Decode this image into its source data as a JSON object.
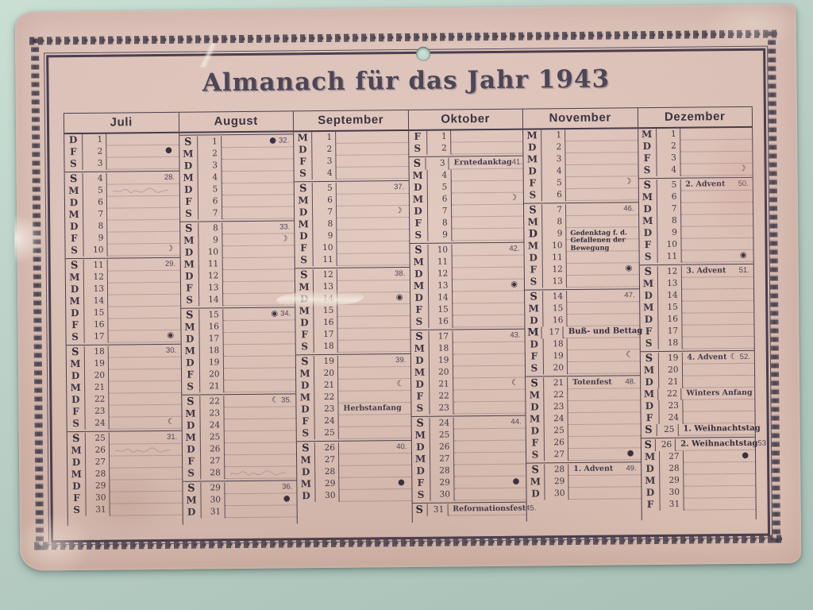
{
  "title": "Almanach für das Jahr 1943",
  "colors": {
    "paper": "#d6bab0",
    "ink": "#473d4b",
    "background": "#b7cec6"
  },
  "moon_symbols": {
    "new": "●",
    "first_quarter": "☽",
    "full": "◉",
    "last_quarter": "☾"
  },
  "months": [
    {
      "name": "Juli",
      "days": [
        {
          "n": 1,
          "w": "D"
        },
        {
          "n": 2,
          "w": "F",
          "m": "●"
        },
        {
          "n": 3,
          "w": "S"
        },
        {
          "n": 4,
          "w": "S",
          "s": 1,
          "wk": "28."
        },
        {
          "n": 5,
          "w": "M",
          "p": 1
        },
        {
          "n": 6,
          "w": "D"
        },
        {
          "n": 7,
          "w": "M"
        },
        {
          "n": 8,
          "w": "D"
        },
        {
          "n": 9,
          "w": "F"
        },
        {
          "n": 10,
          "w": "S",
          "m": "☽"
        },
        {
          "n": 11,
          "w": "S",
          "s": 1,
          "wk": "29."
        },
        {
          "n": 12,
          "w": "M"
        },
        {
          "n": 13,
          "w": "D"
        },
        {
          "n": 14,
          "w": "M"
        },
        {
          "n": 15,
          "w": "D"
        },
        {
          "n": 16,
          "w": "F"
        },
        {
          "n": 17,
          "w": "S",
          "m": "◉"
        },
        {
          "n": 18,
          "w": "S",
          "s": 1,
          "wk": "30."
        },
        {
          "n": 19,
          "w": "M"
        },
        {
          "n": 20,
          "w": "D"
        },
        {
          "n": 21,
          "w": "M"
        },
        {
          "n": 22,
          "w": "D"
        },
        {
          "n": 23,
          "w": "F"
        },
        {
          "n": 24,
          "w": "S",
          "m": "☾"
        },
        {
          "n": 25,
          "w": "S",
          "s": 1,
          "wk": "31."
        },
        {
          "n": 26,
          "w": "M",
          "p": 1
        },
        {
          "n": 27,
          "w": "D"
        },
        {
          "n": 28,
          "w": "M"
        },
        {
          "n": 29,
          "w": "D"
        },
        {
          "n": 30,
          "w": "F"
        },
        {
          "n": 31,
          "w": "S"
        }
      ]
    },
    {
      "name": "August",
      "days": [
        {
          "n": 1,
          "w": "S",
          "s": 1,
          "m": "●",
          "wk": "32."
        },
        {
          "n": 2,
          "w": "M"
        },
        {
          "n": 3,
          "w": "D"
        },
        {
          "n": 4,
          "w": "M"
        },
        {
          "n": 5,
          "w": "D"
        },
        {
          "n": 6,
          "w": "F"
        },
        {
          "n": 7,
          "w": "S"
        },
        {
          "n": 8,
          "w": "S",
          "s": 1,
          "wk": "33."
        },
        {
          "n": 9,
          "w": "M",
          "m": "☽"
        },
        {
          "n": 10,
          "w": "D"
        },
        {
          "n": 11,
          "w": "M"
        },
        {
          "n": 12,
          "w": "D"
        },
        {
          "n": 13,
          "w": "F"
        },
        {
          "n": 14,
          "w": "S"
        },
        {
          "n": 15,
          "w": "S",
          "s": 1,
          "m": "◉",
          "wk": "34."
        },
        {
          "n": 16,
          "w": "M"
        },
        {
          "n": 17,
          "w": "D"
        },
        {
          "n": 18,
          "w": "M"
        },
        {
          "n": 19,
          "w": "D"
        },
        {
          "n": 20,
          "w": "F"
        },
        {
          "n": 21,
          "w": "S"
        },
        {
          "n": 22,
          "w": "S",
          "s": 1,
          "m": "☾",
          "wk": "35."
        },
        {
          "n": 23,
          "w": "M"
        },
        {
          "n": 24,
          "w": "D"
        },
        {
          "n": 25,
          "w": "M"
        },
        {
          "n": 26,
          "w": "D"
        },
        {
          "n": 27,
          "w": "F"
        },
        {
          "n": 28,
          "w": "S",
          "p": 1
        },
        {
          "n": 29,
          "w": "S",
          "s": 1,
          "wk": "36."
        },
        {
          "n": 30,
          "w": "M",
          "m": "●"
        },
        {
          "n": 31,
          "w": "D"
        }
      ]
    },
    {
      "name": "September",
      "days": [
        {
          "n": 1,
          "w": "M"
        },
        {
          "n": 2,
          "w": "D"
        },
        {
          "n": 3,
          "w": "F"
        },
        {
          "n": 4,
          "w": "S"
        },
        {
          "n": 5,
          "w": "S",
          "s": 1,
          "wk": "37."
        },
        {
          "n": 6,
          "w": "M"
        },
        {
          "n": 7,
          "w": "D",
          "m": "☽"
        },
        {
          "n": 8,
          "w": "M"
        },
        {
          "n": 9,
          "w": "D"
        },
        {
          "n": 10,
          "w": "F"
        },
        {
          "n": 11,
          "w": "S"
        },
        {
          "n": 12,
          "w": "S",
          "s": 1,
          "wk": "38."
        },
        {
          "n": 13,
          "w": "M"
        },
        {
          "n": 14,
          "w": "D",
          "m": "◉"
        },
        {
          "n": 15,
          "w": "M"
        },
        {
          "n": 16,
          "w": "D"
        },
        {
          "n": 17,
          "w": "F"
        },
        {
          "n": 18,
          "w": "S"
        },
        {
          "n": 19,
          "w": "S",
          "s": 1,
          "wk": "39."
        },
        {
          "n": 20,
          "w": "M"
        },
        {
          "n": 21,
          "w": "D",
          "m": "☾"
        },
        {
          "n": 22,
          "w": "M"
        },
        {
          "n": 23,
          "w": "D",
          "t": "Herbstanfang"
        },
        {
          "n": 24,
          "w": "F"
        },
        {
          "n": 25,
          "w": "S"
        },
        {
          "n": 26,
          "w": "S",
          "s": 1,
          "wk": "40."
        },
        {
          "n": 27,
          "w": "M"
        },
        {
          "n": 28,
          "w": "D"
        },
        {
          "n": 29,
          "w": "M",
          "m": "●"
        },
        {
          "n": 30,
          "w": "D"
        }
      ]
    },
    {
      "name": "Oktober",
      "days": [
        {
          "n": 1,
          "w": "F"
        },
        {
          "n": 2,
          "w": "S"
        },
        {
          "n": 3,
          "w": "S",
          "s": 1,
          "t": "Erntedanktag",
          "wk": "41."
        },
        {
          "n": 4,
          "w": "M"
        },
        {
          "n": 5,
          "w": "D"
        },
        {
          "n": 6,
          "w": "M",
          "m": "☽"
        },
        {
          "n": 7,
          "w": "D"
        },
        {
          "n": 8,
          "w": "F"
        },
        {
          "n": 9,
          "w": "S"
        },
        {
          "n": 10,
          "w": "S",
          "s": 1,
          "wk": "42."
        },
        {
          "n": 11,
          "w": "M"
        },
        {
          "n": 12,
          "w": "D"
        },
        {
          "n": 13,
          "w": "M",
          "m": "◉"
        },
        {
          "n": 14,
          "w": "D"
        },
        {
          "n": 15,
          "w": "F"
        },
        {
          "n": 16,
          "w": "S"
        },
        {
          "n": 17,
          "w": "S",
          "s": 1,
          "wk": "43."
        },
        {
          "n": 18,
          "w": "M"
        },
        {
          "n": 19,
          "w": "D"
        },
        {
          "n": 20,
          "w": "M"
        },
        {
          "n": 21,
          "w": "D",
          "m": "☾"
        },
        {
          "n": 22,
          "w": "F"
        },
        {
          "n": 23,
          "w": "S"
        },
        {
          "n": 24,
          "w": "S",
          "s": 1,
          "wk": "44."
        },
        {
          "n": 25,
          "w": "M"
        },
        {
          "n": 26,
          "w": "D"
        },
        {
          "n": 27,
          "w": "M"
        },
        {
          "n": 28,
          "w": "D"
        },
        {
          "n": 29,
          "w": "F",
          "m": "●"
        },
        {
          "n": 30,
          "w": "S"
        },
        {
          "n": 31,
          "w": "S",
          "s": 1,
          "t": "Reformationsfest",
          "wk": "45."
        }
      ]
    },
    {
      "name": "November",
      "days": [
        {
          "n": 1,
          "w": "M"
        },
        {
          "n": 2,
          "w": "D"
        },
        {
          "n": 3,
          "w": "M"
        },
        {
          "n": 4,
          "w": "D"
        },
        {
          "n": 5,
          "w": "F",
          "m": "☽"
        },
        {
          "n": 6,
          "w": "S"
        },
        {
          "n": 7,
          "w": "S",
          "s": 1,
          "wk": "46."
        },
        {
          "n": 8,
          "w": "M"
        },
        {
          "n": 9,
          "w": "D",
          "bw": 1,
          "b": 1,
          "wr": 1,
          "t": "Gedenktag f. d. Gefallenen der Bewegung"
        },
        {
          "n": 10,
          "w": "M"
        },
        {
          "n": 11,
          "w": "D"
        },
        {
          "n": 12,
          "w": "F",
          "m": "◉"
        },
        {
          "n": 13,
          "w": "S"
        },
        {
          "n": 14,
          "w": "S",
          "s": 1,
          "wk": "47."
        },
        {
          "n": 15,
          "w": "M"
        },
        {
          "n": 16,
          "w": "D"
        },
        {
          "n": 17,
          "w": "M",
          "bw": 1,
          "b": 1,
          "t": "Buß- und Bettag"
        },
        {
          "n": 18,
          "w": "D"
        },
        {
          "n": 19,
          "w": "F",
          "m": "☾"
        },
        {
          "n": 20,
          "w": "S"
        },
        {
          "n": 21,
          "w": "S",
          "s": 1,
          "t": "Totenfest",
          "wk": "48."
        },
        {
          "n": 22,
          "w": "M"
        },
        {
          "n": 23,
          "w": "D"
        },
        {
          "n": 24,
          "w": "M"
        },
        {
          "n": 25,
          "w": "D"
        },
        {
          "n": 26,
          "w": "F"
        },
        {
          "n": 27,
          "w": "S",
          "m": "●"
        },
        {
          "n": 28,
          "w": "S",
          "s": 1,
          "t": "1. Advent",
          "wk": "49."
        },
        {
          "n": 29,
          "w": "M"
        },
        {
          "n": 30,
          "w": "D"
        }
      ]
    },
    {
      "name": "Dezember",
      "days": [
        {
          "n": 1,
          "w": "M"
        },
        {
          "n": 2,
          "w": "D"
        },
        {
          "n": 3,
          "w": "F"
        },
        {
          "n": 4,
          "w": "S",
          "m": "☽"
        },
        {
          "n": 5,
          "w": "S",
          "s": 1,
          "t": "2. Advent",
          "wk": "50."
        },
        {
          "n": 6,
          "w": "M"
        },
        {
          "n": 7,
          "w": "D"
        },
        {
          "n": 8,
          "w": "M"
        },
        {
          "n": 9,
          "w": "D"
        },
        {
          "n": 10,
          "w": "F"
        },
        {
          "n": 11,
          "w": "S",
          "m": "◉"
        },
        {
          "n": 12,
          "w": "S",
          "s": 1,
          "t": "3. Advent",
          "wk": "51."
        },
        {
          "n": 13,
          "w": "M"
        },
        {
          "n": 14,
          "w": "D"
        },
        {
          "n": 15,
          "w": "M"
        },
        {
          "n": 16,
          "w": "D"
        },
        {
          "n": 17,
          "w": "F"
        },
        {
          "n": 18,
          "w": "S"
        },
        {
          "n": 19,
          "w": "S",
          "s": 1,
          "t": "4. Advent",
          "m": "☾",
          "wk": "52."
        },
        {
          "n": 20,
          "w": "M"
        },
        {
          "n": 21,
          "w": "D"
        },
        {
          "n": 22,
          "w": "M",
          "t": "Winters Anfang"
        },
        {
          "n": 23,
          "w": "D"
        },
        {
          "n": 24,
          "w": "F"
        },
        {
          "n": 25,
          "w": "S",
          "bw": 1,
          "b": 1,
          "t": "1. Weihnachtstag"
        },
        {
          "n": 26,
          "w": "S",
          "s": 1,
          "b": 1,
          "t": "2. Weihnachtstag",
          "wk": "53."
        },
        {
          "n": 27,
          "w": "M",
          "m": "●"
        },
        {
          "n": 28,
          "w": "D"
        },
        {
          "n": 29,
          "w": "M"
        },
        {
          "n": 30,
          "w": "D"
        },
        {
          "n": 31,
          "w": "F"
        }
      ]
    }
  ]
}
